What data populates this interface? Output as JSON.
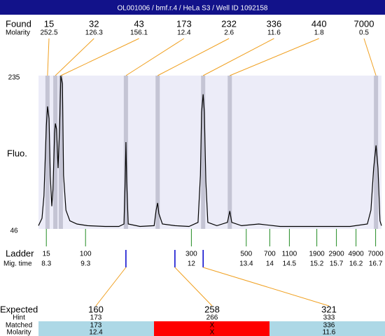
{
  "header": {
    "title": "OL001006 / bmf.r.4 / HeLa S3 / Well ID 1092158"
  },
  "chart_data": {
    "type": "electropherogram",
    "y_label": "Fluo.",
    "ylim": [
      46,
      235
    ],
    "yticks": [
      235,
      46
    ],
    "xlim": [
      8.1,
      16.85
    ],
    "trace": {
      "color": "#000000",
      "x": [
        8.1,
        8.19,
        8.24,
        8.3,
        8.33,
        8.37,
        8.4,
        8.44,
        8.47,
        8.51,
        8.53,
        8.56,
        8.6,
        8.64,
        8.67,
        8.71,
        8.74,
        8.8,
        8.9,
        9.08,
        9.35,
        9.8,
        10.15,
        10.28,
        10.31,
        10.33,
        10.35,
        10.39,
        10.69,
        11.05,
        11.1,
        11.14,
        11.17,
        11.26,
        11.58,
        11.94,
        12.17,
        12.23,
        12.26,
        12.3,
        12.33,
        12.37,
        12.42,
        12.65,
        12.92,
        12.98,
        13.03,
        13.28,
        13.72,
        14.26,
        15.15,
        16.05,
        16.49,
        16.58,
        16.65,
        16.71,
        16.76,
        16.81,
        16.85
      ],
      "y": [
        50,
        59,
        87,
        173,
        197,
        182,
        112,
        74,
        95,
        164,
        176,
        169,
        121,
        173,
        235,
        225,
        112,
        69,
        56,
        52,
        50,
        49,
        49,
        52,
        104,
        153,
        104,
        52,
        49,
        50,
        69,
        78,
        65,
        52,
        50,
        49,
        54,
        112,
        190,
        212,
        190,
        104,
        54,
        50,
        54,
        68,
        54,
        50,
        52,
        49,
        49,
        49,
        52,
        69,
        121,
        149,
        121,
        56,
        50
      ]
    },
    "found": {
      "label": "Found",
      "sub_label": "Molarity",
      "peaks": [
        {
          "size": 15,
          "molarity": 252.5,
          "time": 8.33
        },
        {
          "size": 32,
          "molarity": 126.3,
          "time": 8.53
        },
        {
          "size": 43,
          "molarity": 156.1,
          "time": 8.67
        },
        {
          "size": 173,
          "molarity": 12.4,
          "time": 10.33
        },
        {
          "size": 232,
          "molarity": 2.6,
          "time": 11.14
        },
        {
          "size": 336,
          "molarity": 11.6,
          "time": 12.3
        },
        {
          "size": 440,
          "molarity": 1.8,
          "time": 12.98
        },
        {
          "size": 7000,
          "molarity": 0.5,
          "time": 16.71
        }
      ]
    },
    "ladder": {
      "label": "Ladder",
      "sub_label": "Mig. time",
      "sizes": [
        15,
        100,
        300,
        500,
        700,
        1100,
        1900,
        2900,
        4900,
        7000
      ],
      "times": [
        8.3,
        9.3,
        12,
        13.4,
        14,
        14.5,
        15.2,
        15.7,
        16.2,
        16.7
      ]
    },
    "expected": {
      "label": "Expected",
      "row_labels": [
        "Hint",
        "Matched",
        "Molarity"
      ],
      "items": [
        {
          "size": 160,
          "time": 10.33,
          "hint": 173,
          "matched": 173,
          "molarity": 12.4,
          "color": "#add8e6"
        },
        {
          "size": 258,
          "time": 11.58,
          "hint": 266,
          "matched": "X",
          "molarity": "X",
          "color": "#ff0000"
        },
        {
          "size": 321,
          "time": 12.3,
          "hint": 333,
          "matched": 336,
          "molarity": 11.6,
          "color": "#add8e6"
        }
      ]
    }
  }
}
